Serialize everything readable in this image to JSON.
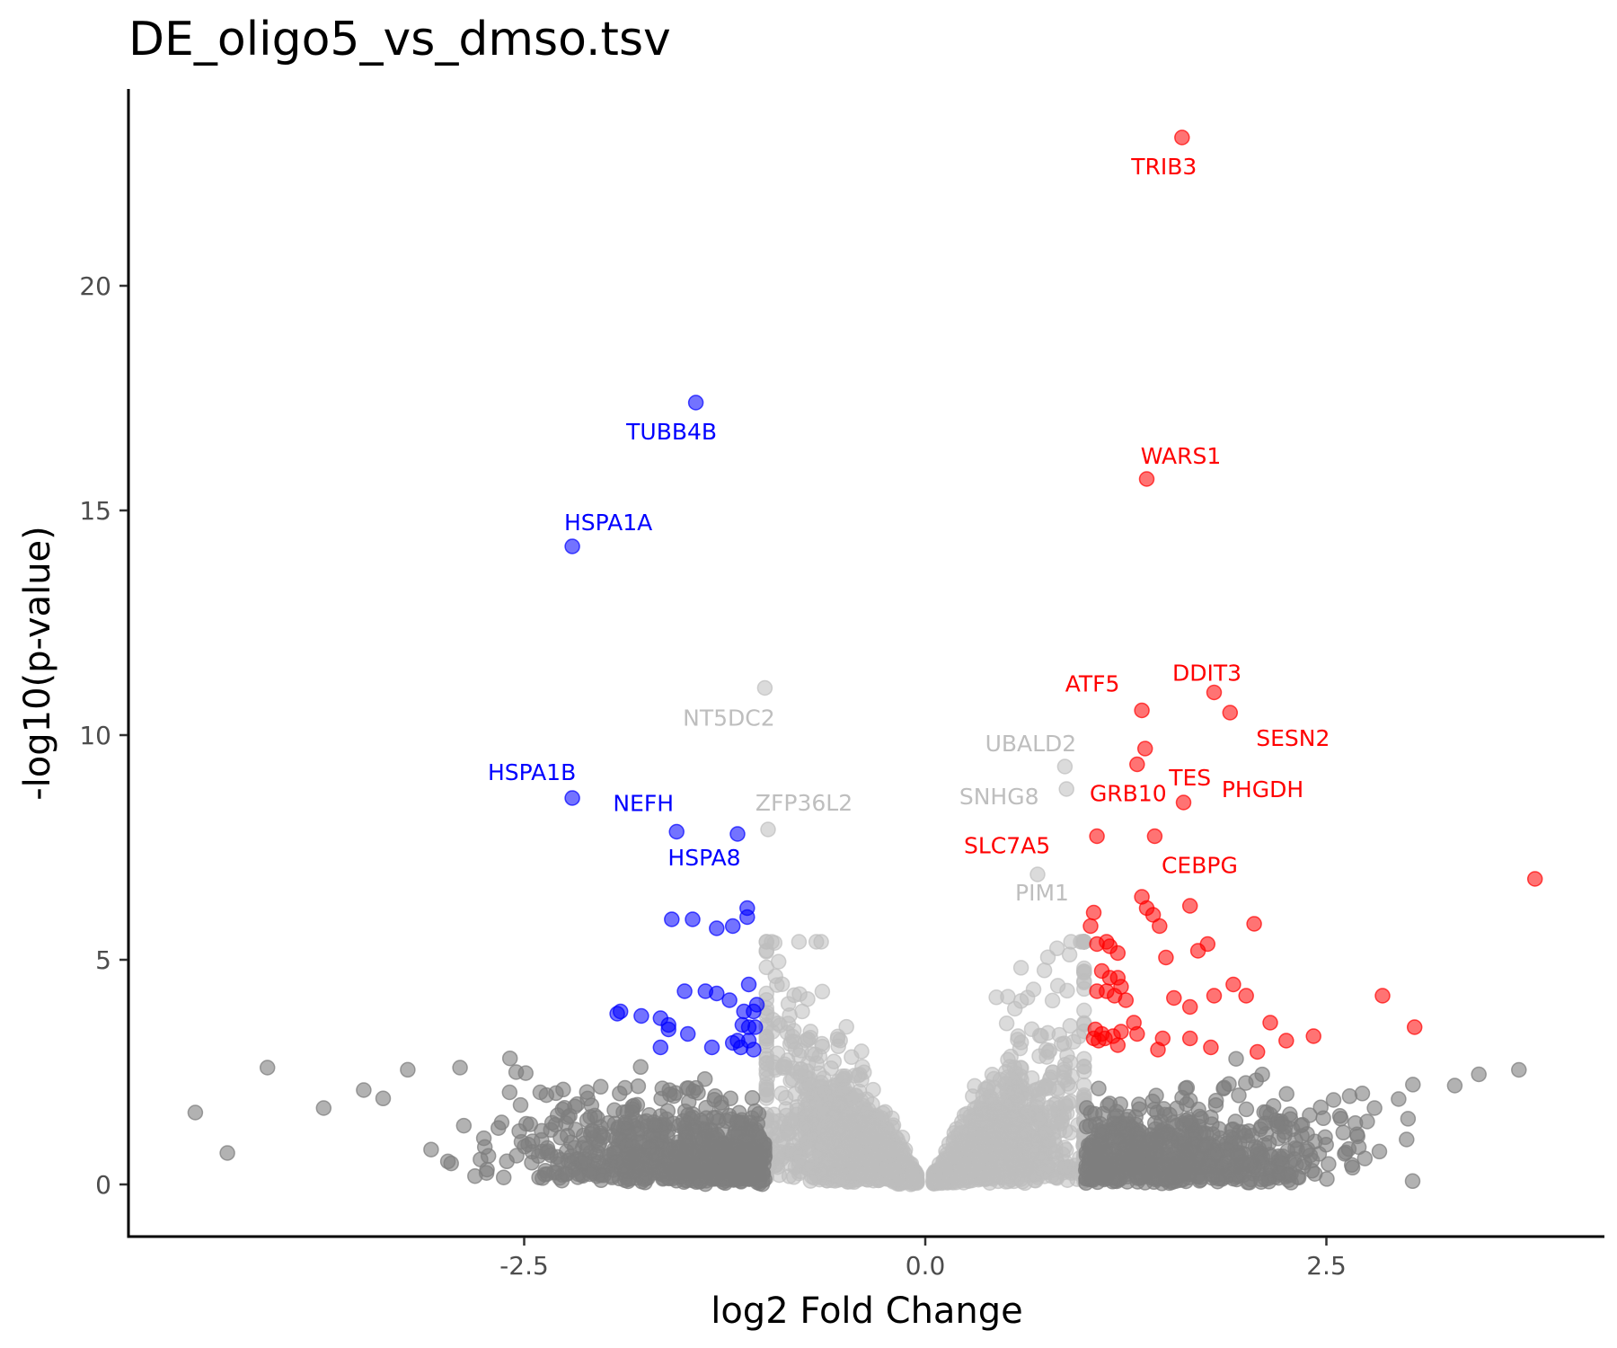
{
  "chart_data": {
    "type": "scatter",
    "title": "DE_oligo5_vs_dmso.tsv",
    "xlabel": "log2 Fold Change",
    "ylabel": "-log10(p-value)",
    "xlim": [
      -4.9,
      4.2
    ],
    "ylim": [
      -1.15,
      24.2
    ],
    "x_ticks": [
      -2.5,
      0.0,
      2.5
    ],
    "x_tick_labels": [
      "-2.5",
      "0.0",
      "2.5"
    ],
    "y_ticks": [
      0,
      5,
      10,
      15,
      20
    ],
    "y_tick_labels": [
      "0",
      "5",
      "10",
      "15",
      "20"
    ],
    "grid": false,
    "legend": "none",
    "colors": {
      "up": "#ff0000",
      "down": "#0000ff",
      "not_significant_strong_fc": "#7f7f7f",
      "not_significant": "#bebebe",
      "axis": "#000000",
      "tick_label": "#4d4d4d"
    },
    "labeled_points": [
      {
        "gene": "TRIB3",
        "x": 1.6,
        "y": 23.3,
        "group": "up"
      },
      {
        "gene": "WARS1",
        "x": 1.38,
        "y": 15.7,
        "group": "up"
      },
      {
        "gene": "DDIT3",
        "x": 1.8,
        "y": 10.95,
        "group": "up"
      },
      {
        "gene": "ATF5",
        "x": 1.35,
        "y": 10.55,
        "group": "up"
      },
      {
        "gene": "SESN2",
        "x": 1.9,
        "y": 10.5,
        "group": "up"
      },
      {
        "gene": "TES",
        "x": 1.37,
        "y": 9.7,
        "group": "up"
      },
      {
        "gene": "GRB10",
        "x": 1.32,
        "y": 9.35,
        "group": "up"
      },
      {
        "gene": "PHGDH",
        "x": 1.61,
        "y": 8.5,
        "group": "up"
      },
      {
        "gene": "SLC7A5",
        "x": 1.07,
        "y": 7.75,
        "group": "up"
      },
      {
        "gene": "CEBPG",
        "x": 1.43,
        "y": 7.75,
        "group": "up"
      },
      {
        "gene": "TUBB4B",
        "x": -1.43,
        "y": 17.4,
        "group": "down"
      },
      {
        "gene": "HSPA1A",
        "x": -2.2,
        "y": 14.2,
        "group": "down"
      },
      {
        "gene": "HSPA1B",
        "x": -2.2,
        "y": 8.6,
        "group": "down"
      },
      {
        "gene": "NEFH",
        "x": -1.55,
        "y": 7.85,
        "group": "down"
      },
      {
        "gene": "HSPA8",
        "x": -1.17,
        "y": 7.8,
        "group": "down"
      },
      {
        "gene": "NT5DC2",
        "x": -1.0,
        "y": 11.05,
        "group": "ns"
      },
      {
        "gene": "UBALD2",
        "x": 0.87,
        "y": 9.3,
        "group": "ns"
      },
      {
        "gene": "SNHG8",
        "x": 0.88,
        "y": 8.8,
        "group": "ns"
      },
      {
        "gene": "ZFP36L2",
        "x": -0.98,
        "y": 7.9,
        "group": "ns"
      },
      {
        "gene": "PIM1",
        "x": 0.7,
        "y": 6.9,
        "group": "ns"
      }
    ],
    "up_points": [
      [
        3.8,
        6.8
      ],
      [
        1.05,
        6.05
      ],
      [
        1.03,
        5.75
      ],
      [
        1.65,
        6.2
      ],
      [
        2.05,
        5.8
      ],
      [
        1.35,
        6.4
      ],
      [
        1.38,
        6.15
      ],
      [
        1.42,
        6.0
      ],
      [
        1.46,
        5.75
      ],
      [
        1.07,
        5.35
      ],
      [
        1.13,
        5.4
      ],
      [
        1.15,
        5.3
      ],
      [
        1.2,
        5.15
      ],
      [
        1.5,
        5.05
      ],
      [
        1.7,
        5.2
      ],
      [
        1.76,
        5.35
      ],
      [
        1.1,
        4.75
      ],
      [
        1.15,
        4.6
      ],
      [
        1.2,
        4.6
      ],
      [
        1.22,
        4.4
      ],
      [
        1.13,
        4.3
      ],
      [
        1.18,
        4.2
      ],
      [
        1.25,
        4.1
      ],
      [
        1.07,
        4.3
      ],
      [
        1.55,
        4.15
      ],
      [
        1.65,
        3.95
      ],
      [
        1.8,
        4.2
      ],
      [
        1.92,
        4.45
      ],
      [
        2.0,
        4.2
      ],
      [
        2.85,
        4.2
      ],
      [
        2.15,
        3.6
      ],
      [
        1.3,
        3.6
      ],
      [
        1.32,
        3.35
      ],
      [
        1.22,
        3.4
      ],
      [
        1.1,
        3.35
      ],
      [
        1.06,
        3.45
      ],
      [
        1.08,
        3.2
      ],
      [
        1.12,
        3.25
      ],
      [
        1.17,
        3.3
      ],
      [
        1.2,
        3.1
      ],
      [
        1.05,
        3.25
      ],
      [
        1.48,
        3.25
      ],
      [
        1.45,
        3.0
      ],
      [
        1.65,
        3.25
      ],
      [
        1.78,
        3.05
      ],
      [
        2.25,
        3.2
      ],
      [
        2.42,
        3.3
      ],
      [
        3.05,
        3.5
      ],
      [
        2.07,
        2.95
      ]
    ],
    "down_points": [
      [
        -1.58,
        5.9
      ],
      [
        -1.45,
        5.9
      ],
      [
        -1.3,
        5.7
      ],
      [
        -1.2,
        5.75
      ],
      [
        -1.11,
        5.95
      ],
      [
        -1.11,
        6.15
      ],
      [
        -1.1,
        4.45
      ],
      [
        -1.37,
        4.3
      ],
      [
        -1.5,
        4.3
      ],
      [
        -1.3,
        4.25
      ],
      [
        -1.22,
        4.1
      ],
      [
        -1.13,
        3.85
      ],
      [
        -1.07,
        3.85
      ],
      [
        -1.05,
        4.0
      ],
      [
        -1.9,
        3.85
      ],
      [
        -1.92,
        3.8
      ],
      [
        -1.77,
        3.75
      ],
      [
        -1.65,
        3.7
      ],
      [
        -1.6,
        3.55
      ],
      [
        -1.6,
        3.45
      ],
      [
        -1.48,
        3.35
      ],
      [
        -1.1,
        3.5
      ],
      [
        -1.14,
        3.55
      ],
      [
        -1.06,
        3.5
      ],
      [
        -1.17,
        3.2
      ],
      [
        -1.2,
        3.15
      ],
      [
        -1.1,
        3.2
      ],
      [
        -1.65,
        3.05
      ],
      [
        -1.33,
        3.05
      ],
      [
        -1.15,
        3.05
      ],
      [
        -1.07,
        3.0
      ]
    ]
  }
}
